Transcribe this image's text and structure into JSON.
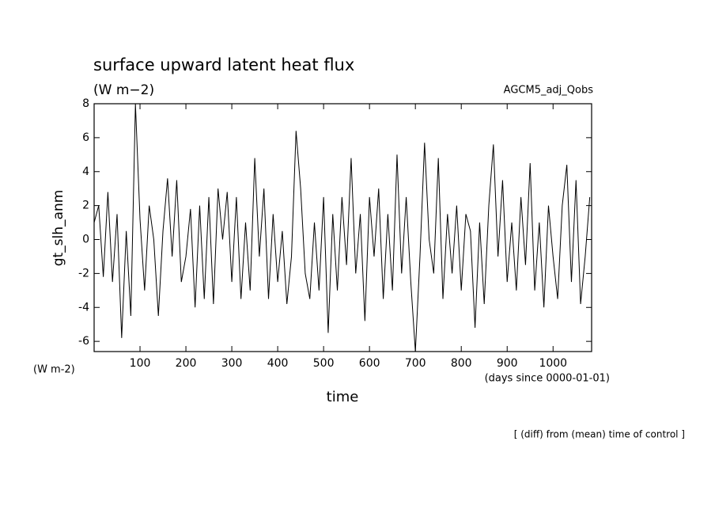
{
  "chart_data": {
    "type": "line",
    "title": "surface upward latent heat flux",
    "units": "(W m−2)",
    "experiment": "AGCM5_adj_Qobs",
    "y_label": "gt_slh_anm",
    "y_units": "(W m-2)",
    "x_units": "(days since 0000-01-01)",
    "x_label": "time",
    "note": "[ (diff) from (mean) time of control ]",
    "x": [
      0,
      10,
      20,
      30,
      40,
      50,
      60,
      70,
      80,
      90,
      100,
      110,
      120,
      130,
      140,
      150,
      160,
      170,
      180,
      190,
      200,
      210,
      220,
      230,
      240,
      250,
      260,
      270,
      280,
      290,
      300,
      310,
      320,
      330,
      340,
      350,
      360,
      370,
      380,
      390,
      400,
      410,
      420,
      430,
      440,
      450,
      460,
      470,
      480,
      490,
      500,
      510,
      520,
      530,
      540,
      550,
      560,
      570,
      580,
      590,
      600,
      610,
      620,
      630,
      640,
      650,
      660,
      670,
      680,
      690,
      700,
      710,
      720,
      730,
      740,
      750,
      760,
      770,
      780,
      790,
      800,
      810,
      820,
      830,
      840,
      850,
      860,
      870,
      880,
      890,
      900,
      910,
      920,
      930,
      940,
      950,
      960,
      970,
      980,
      990,
      1000,
      1010,
      1020,
      1030,
      1040,
      1050,
      1060,
      1070,
      1080
    ],
    "series": [
      {
        "color": "#000000",
        "values": [
          1,
          2,
          -2.2,
          2.8,
          -2.5,
          1.5,
          -5.8,
          0.5,
          -4.5,
          8,
          1.2,
          -3,
          2,
          0,
          -4.5,
          0.5,
          3.6,
          -1,
          3.5,
          -2.5,
          -1,
          1.8,
          -4,
          2,
          -3.5,
          2.5,
          -3.8,
          3,
          0,
          2.8,
          -2.5,
          2.5,
          -3.5,
          1,
          -3,
          4.8,
          -1,
          3,
          -3.5,
          1.5,
          -2.5,
          0.5,
          -3.8,
          -1,
          6.4,
          3,
          -2,
          -3.5,
          1,
          -3,
          2.5,
          -5.5,
          1.5,
          -3,
          2.5,
          -1.5,
          4.8,
          -2,
          1.5,
          -4.8,
          2.5,
          -1,
          3,
          -3.5,
          1.5,
          -3,
          5,
          -2,
          2.5,
          -2.5,
          -6.6,
          -1,
          5.7,
          0,
          -2,
          4.8,
          -3.5,
          1.5,
          -2,
          2,
          -3,
          1.5,
          0.5,
          -5.2,
          1,
          -3.8,
          2,
          5.6,
          -1,
          3.5,
          -2.5,
          1,
          -3,
          2.5,
          -1.5,
          4.5,
          -3,
          1,
          -4,
          2,
          -1,
          -3.5,
          2,
          4.4,
          -2.5,
          3.5,
          -3.8,
          -1,
          2.5
        ]
      }
    ],
    "xlim": [
      0,
      1084
    ],
    "ylim": [
      -6.6,
      8
    ],
    "xticks": [
      100,
      200,
      300,
      400,
      500,
      600,
      700,
      800,
      900,
      1000
    ],
    "yticks": [
      -6,
      -4,
      -2,
      0,
      2,
      4,
      6,
      8
    ]
  }
}
